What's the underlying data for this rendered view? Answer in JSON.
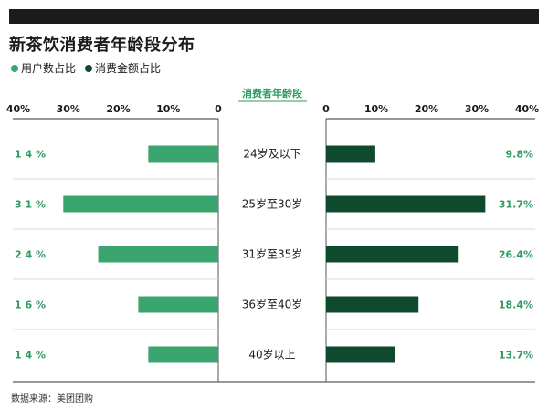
{
  "title": "新茶饮消费者年龄段分布",
  "legend": [
    {
      "label": "用户数占比",
      "color": "#3aa56e"
    },
    {
      "label": "消费金额占比",
      "color": "#0f4a2e"
    }
  ],
  "source": "数据来源：美团团购",
  "chart_data": {
    "type": "bar",
    "subtype": "back-to-back horizontal bar",
    "center_header": "消费者年龄段",
    "categories": [
      "24岁及以下",
      "25岁至30岁",
      "31岁至35岁",
      "36岁至40岁",
      "40岁以上"
    ],
    "left_axis_ticks": [
      "40%",
      "30%",
      "20%",
      "10%",
      "0"
    ],
    "right_axis_ticks": [
      "0",
      "10%",
      "20%",
      "30%",
      "40%"
    ],
    "xlim": [
      0,
      40
    ],
    "series": [
      {
        "name": "用户数占比",
        "side": "left",
        "color": "#3aa56e",
        "values": [
          14,
          31,
          24,
          16,
          14
        ],
        "labels": [
          "1 4 %",
          "3 1 %",
          "2 4 %",
          "1 6 %",
          "1 4 %"
        ]
      },
      {
        "name": "消费金额占比",
        "side": "right",
        "color": "#0f4a2e",
        "values": [
          9.8,
          31.7,
          26.4,
          18.4,
          13.7
        ],
        "labels": [
          "9.8%",
          "31.7%",
          "26.4%",
          "18.4%",
          "13.7%"
        ]
      }
    ],
    "gridlines": true
  }
}
